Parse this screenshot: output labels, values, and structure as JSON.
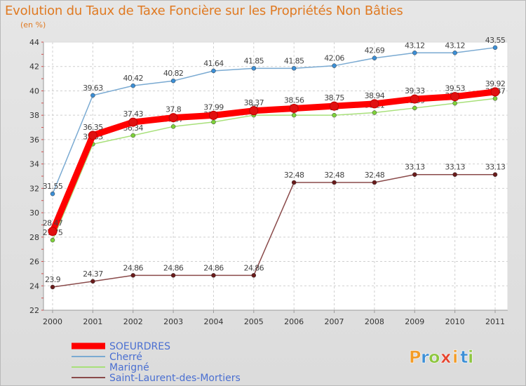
{
  "header": {
    "title": "Evolution du Taux de Taxe Foncière sur les Propriétés Non Bâties",
    "unit": "(en %)"
  },
  "brand": {
    "letters": [
      "P",
      "r",
      "o",
      "x",
      "i",
      "t",
      "i"
    ],
    "colors": [
      "#f39c27",
      "#3c8fd6",
      "#8dc63f",
      "#e5452f",
      "#f39c27",
      "#3c8fd6",
      "#8dc63f"
    ]
  },
  "chart_data": {
    "type": "line",
    "title": "Evolution du Taux de Taxe Foncière sur les Propriétés Non Bâties",
    "ylabel": "(en %)",
    "xlabel": "",
    "ylim": [
      22,
      44
    ],
    "yticks": [
      22,
      24,
      26,
      28,
      30,
      32,
      34,
      36,
      38,
      40,
      42,
      44
    ],
    "categories": [
      "2000",
      "2001",
      "2002",
      "2003",
      "2004",
      "2005",
      "2006",
      "2007",
      "2008",
      "2009",
      "2010",
      "2011"
    ],
    "grid": true,
    "legend": "bottom-left",
    "series": [
      {
        "name": "Cherré",
        "line_color": "#7aaad2",
        "marker_color": "#3c8fd6",
        "values": [
          31.55,
          39.63,
          40.42,
          40.82,
          41.64,
          41.85,
          41.85,
          42.06,
          42.69,
          43.12,
          43.12,
          43.55
        ],
        "labels": [
          "31.55",
          "39.63",
          "40.42",
          "40.82",
          "41.64",
          "41.85",
          "41.85",
          "42.06",
          "42.69",
          "43.12",
          "43.12",
          "43.55"
        ]
      },
      {
        "name": "Marigné",
        "line_color": "#a8e07a",
        "marker_color": "#7ed23a",
        "values": [
          27.75,
          35.63,
          36.34,
          37.07,
          37.44,
          38.0,
          38.0,
          38.0,
          38.21,
          38.59,
          38.98,
          39.37
        ],
        "labels": [
          "27.75",
          "35.63",
          "36.34",
          "37.07",
          "37.44",
          "38",
          "38",
          "38",
          "38.21",
          "38.59",
          "38.98",
          "39.37"
        ]
      },
      {
        "name": "Saint-Laurent-des-Mortiers",
        "line_color": "#8a4a4a",
        "marker_color": "#6a1b1b",
        "values": [
          23.9,
          24.37,
          24.86,
          24.86,
          24.86,
          24.86,
          32.48,
          32.48,
          32.48,
          33.13,
          33.13,
          33.13
        ],
        "labels": [
          "23.9",
          "24.37",
          "24.86",
          "24.86",
          "24.86",
          "24.86",
          "32.48",
          "32.48",
          "32.48",
          "33.13",
          "33.13",
          "33.13"
        ]
      },
      {
        "name": "SOEURDRES",
        "line_color": "#ff0000",
        "marker_color": "#e01010",
        "values": [
          28.47,
          36.35,
          37.43,
          37.8,
          37.99,
          38.37,
          38.56,
          38.75,
          38.94,
          39.33,
          39.53,
          39.92
        ],
        "labels": [
          "28.47",
          "36.35",
          "37.43",
          "37.8",
          "37.99",
          "38.37",
          "38.56",
          "38.75",
          "38.94",
          "39.33",
          "39.53",
          "39.92"
        ]
      }
    ],
    "legend_order": [
      "SOEURDRES",
      "Cherré",
      "Marigné",
      "Saint-Laurent-des-Mortiers"
    ]
  }
}
